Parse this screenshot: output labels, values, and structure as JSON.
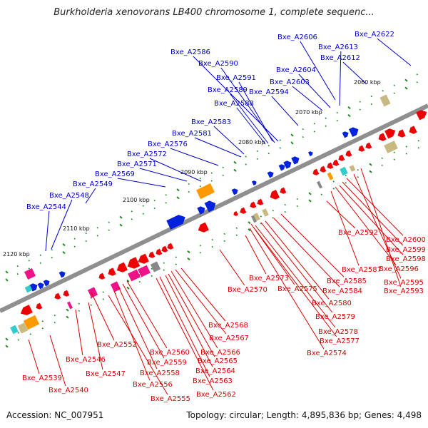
{
  "title": "Burkholderia xenovorans LB400 chromosome 1, complete sequenc...",
  "footer": {
    "accession": "Accession: NC_007951",
    "summary": "Topology: circular; Length: 4,895,836 bp; Genes: 4,498"
  },
  "colors": {
    "backbone": "#8f8f8f",
    "label_top": "#0000cc",
    "label_bottom": "#dd0000",
    "gene_red": "#ee0000",
    "gene_blue": "#0022dd",
    "gene_orange": "#ff9900",
    "gene_magenta": "#ee1188",
    "gene_khaki": "#c8b882",
    "gene_cyan": "#33cccc",
    "gene_gray": "#888888",
    "tick": "#228822"
  },
  "kbp_ticks": [
    "2060 kbp",
    "2070 kbp",
    "2080 kbp",
    "2090 kbp",
    "2100 kbp",
    "2110 kbp",
    "2120 kbp"
  ],
  "top_labels": [
    "Bxe_A2622",
    "Bxe_A2606",
    "Bxe_A2613",
    "Bxe_A2612",
    "Bxe_A2604",
    "Bxe_A2603",
    "Bxe_A2594",
    "Bxe_A2586",
    "Bxe_A2590",
    "Bxe_A2591",
    "Bxe_A2589",
    "Bxe_A2588",
    "Bxe_A2583",
    "Bxe_A2581",
    "Bxe_A2576",
    "Bxe_A2572",
    "Bxe_A2571",
    "Bxe_A2569",
    "Bxe_A2549",
    "Bxe_A2548",
    "Bxe_A2544"
  ],
  "bottom_labels": [
    "Bxe_A2592",
    "Bxe_A2600",
    "Bxe_A2599",
    "Bxe_A2598",
    "Bxe_A2587",
    "Bxe_A2596",
    "Bxe_A2595",
    "Bxe_A2593",
    "Bxe_A2585",
    "Bxe_A2584",
    "Bxe_A2573",
    "Bxe_A2575",
    "Bxe_A2570",
    "Bxe_A2580",
    "Bxe_A2579",
    "Bxe_A2578",
    "Bxe_A2577",
    "Bxe_A2574",
    "Bxe_A2568",
    "Bxe_A2567",
    "Bxe_A2566",
    "Bxe_A2565",
    "Bxe_A2560",
    "Bxe_A2564",
    "Bxe_A2559",
    "Bxe_A2563",
    "Bxe_A2558",
    "Bxe_A2552",
    "Bxe_A2546",
    "Bxe_A2547",
    "Bxe_A2556",
    "Bxe_A2562",
    "Bxe_A2539",
    "Bxe_A2540",
    "Bxe_A2555"
  ]
}
